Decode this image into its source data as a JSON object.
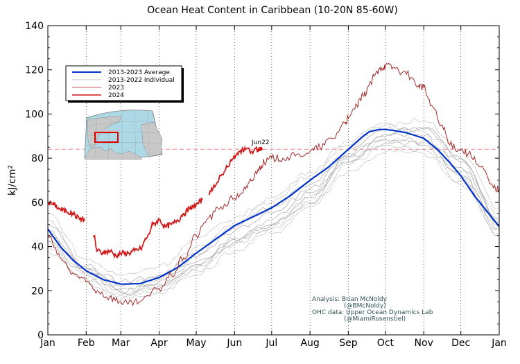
{
  "chart_data": {
    "type": "line",
    "title": "Ocean Heat Content in Caribbean (10-20N 85-60W)",
    "xlabel": "",
    "ylabel": "kJ/cm²",
    "ylim": [
      0,
      140
    ],
    "xlim": [
      0,
      365
    ],
    "yticks": [
      0,
      20,
      40,
      60,
      80,
      100,
      120,
      140
    ],
    "month_labels": [
      "Jan",
      "Feb",
      "Mar",
      "Apr",
      "May",
      "Jun",
      "Jul",
      "Aug",
      "Sep",
      "Oct",
      "Nov",
      "Dec",
      "Jan"
    ],
    "month_days": [
      0,
      31,
      59,
      90,
      120,
      151,
      181,
      212,
      243,
      273,
      304,
      334,
      365
    ],
    "reference_line": {
      "value": 84,
      "style": "dashed",
      "color": "#f4a0a0"
    },
    "annotation": {
      "text": "Jun22",
      "x": 172,
      "y": 84.2
    },
    "legend_position": "top-left",
    "legend": [
      {
        "label": "2013-2023 Average",
        "color": "#0033cc",
        "style": "thick"
      },
      {
        "label": "2013-2022 Individual",
        "color": "#b0b0b0",
        "style": "thin"
      },
      {
        "label": "2023",
        "color": "#a52a2a",
        "style": "thin"
      },
      {
        "label": "2024",
        "color": "#d21414",
        "style": "medium"
      }
    ],
    "credits": [
      "Analysis: Brian McNoldy",
      "(@BMcNoldy)",
      "OHC data: Upper Ocean Dynamics Lab",
      "(@MiamiRosenstiel)"
    ],
    "series": [
      {
        "name": "2013-2023 Average",
        "color": "#0033cc",
        "x": [
          0,
          10,
          20,
          31,
          45,
          59,
          65,
          75,
          90,
          105,
          120,
          135,
          151,
          166,
          181,
          196,
          212,
          227,
          243,
          255,
          260,
          268,
          273,
          280,
          290,
          304,
          315,
          325,
          334,
          345,
          355,
          365
        ],
        "y": [
          48,
          40,
          34,
          29,
          25,
          23,
          23,
          23.3,
          26,
          30.5,
          37,
          43,
          49.5,
          53.5,
          57.5,
          63,
          70,
          76,
          84,
          90,
          92,
          93,
          93,
          92.5,
          91.5,
          89,
          84,
          78,
          72,
          63,
          56,
          49
        ]
      },
      {
        "name": "2023",
        "color": "#a52a2a",
        "x": [
          0,
          10,
          20,
          31,
          40,
          50,
          59,
          65,
          75,
          90,
          100,
          110,
          120,
          130,
          140,
          151,
          160,
          165,
          170,
          175,
          181,
          190,
          200,
          212,
          220,
          230,
          240,
          243,
          250,
          255,
          260,
          265,
          270,
          273,
          280,
          290,
          300,
          304,
          310,
          320,
          325,
          334,
          340,
          350,
          360,
          365
        ],
        "y": [
          45,
          35,
          28,
          24,
          20,
          17,
          15,
          14,
          15,
          21,
          27,
          35,
          45,
          53,
          58,
          62,
          66,
          70,
          75,
          78,
          80,
          80,
          81,
          83,
          85,
          89,
          96,
          98,
          104,
          108,
          113,
          118,
          121,
          122,
          121,
          118,
          113,
          112,
          104,
          93,
          86,
          84,
          82,
          76,
          67,
          66
        ]
      },
      {
        "name": "2024",
        "color": "#d21414",
        "x": [
          0,
          5,
          10,
          15,
          20,
          25,
          30,
          35,
          37,
          40,
          45,
          50,
          55,
          60,
          65,
          70,
          75,
          80,
          85,
          90,
          95,
          100,
          105,
          110,
          115,
          120,
          125,
          130,
          135,
          140,
          145,
          150,
          155,
          160,
          165,
          170,
          172
        ],
        "y": [
          60,
          59,
          57,
          56,
          55,
          53,
          52,
          48,
          45,
          38,
          37,
          38,
          36,
          37,
          37,
          38,
          39,
          44,
          50,
          52,
          49,
          50,
          52,
          55,
          57,
          59,
          61,
          64,
          67,
          72,
          76,
          80,
          83,
          84,
          83,
          84,
          84.2
        ]
      }
    ],
    "individual_years": [
      {
        "name": "2013",
        "x": [
          0,
          31,
          59,
          90,
          120,
          151,
          181,
          212,
          243,
          273,
          304,
          334,
          365
        ],
        "y": [
          44,
          30,
          21,
          24,
          33,
          43,
          50,
          60,
          78,
          87,
          86,
          72,
          50
        ]
      },
      {
        "name": "2014",
        "x": [
          0,
          31,
          59,
          90,
          120,
          151,
          181,
          212,
          243,
          273,
          304,
          334,
          365
        ],
        "y": [
          40,
          25,
          18,
          20,
          27,
          38,
          46,
          58,
          74,
          83,
          82,
          68,
          46
        ]
      },
      {
        "name": "2015",
        "x": [
          0,
          31,
          59,
          90,
          120,
          151,
          181,
          212,
          243,
          273,
          304,
          334,
          365
        ],
        "y": [
          50,
          31,
          24,
          27,
          37,
          49,
          58,
          68,
          82,
          91,
          94,
          80,
          53
        ]
      },
      {
        "name": "2016",
        "x": [
          0,
          31,
          59,
          90,
          120,
          151,
          181,
          212,
          243,
          273,
          304,
          334,
          365
        ],
        "y": [
          55,
          34,
          27,
          31,
          43,
          53,
          62,
          74,
          88,
          95,
          92,
          78,
          55
        ]
      },
      {
        "name": "2017",
        "x": [
          0,
          31,
          59,
          90,
          120,
          151,
          181,
          212,
          243,
          273,
          304,
          334,
          365
        ],
        "y": [
          42,
          27,
          19,
          22,
          31,
          42,
          50,
          62,
          80,
          89,
          88,
          72,
          48
        ]
      },
      {
        "name": "2018",
        "x": [
          0,
          31,
          59,
          90,
          120,
          151,
          181,
          212,
          243,
          273,
          304,
          334,
          365
        ],
        "y": [
          38,
          24,
          16,
          19,
          29,
          41,
          48,
          59,
          77,
          86,
          84,
          70,
          45
        ]
      },
      {
        "name": "2019",
        "x": [
          0,
          31,
          59,
          90,
          120,
          151,
          181,
          212,
          243,
          273,
          304,
          334,
          365
        ],
        "y": [
          46,
          29,
          22,
          25,
          35,
          47,
          55,
          66,
          84,
          93,
          93,
          80,
          52
        ]
      },
      {
        "name": "2020",
        "x": [
          0,
          31,
          59,
          90,
          120,
          151,
          181,
          212,
          243,
          273,
          304,
          334,
          365
        ],
        "y": [
          52,
          30,
          23,
          27,
          40,
          51,
          60,
          72,
          86,
          96,
          97,
          84,
          57
        ]
      },
      {
        "name": "2021",
        "x": [
          0,
          31,
          59,
          90,
          120,
          151,
          181,
          212,
          243,
          273,
          304,
          334,
          365
        ],
        "y": [
          47,
          28,
          20,
          23,
          32,
          44,
          52,
          64,
          81,
          90,
          90,
          76,
          51
        ]
      },
      {
        "name": "2022",
        "x": [
          0,
          31,
          59,
          90,
          120,
          151,
          181,
          212,
          243,
          273,
          304,
          334,
          365
        ],
        "y": [
          43,
          26,
          18,
          21,
          30,
          42,
          49,
          62,
          79,
          88,
          87,
          74,
          48
        ]
      }
    ]
  }
}
